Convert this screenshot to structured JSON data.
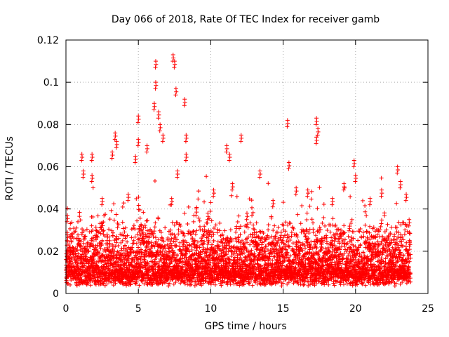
{
  "chart_data": {
    "type": "scatter",
    "title": "Day 066 of 2018, Rate Of TEC Index for receiver gamb",
    "xlabel": "GPS time / hours",
    "ylabel": "ROTI / TECUs",
    "xlim": [
      0,
      25
    ],
    "ylim": [
      0,
      0.12
    ],
    "xticks": [
      0,
      5,
      10,
      15,
      20,
      25
    ],
    "yticks": [
      0,
      0.02,
      0.04,
      0.06,
      0.08,
      0.1,
      0.12
    ],
    "xtick_labels": [
      "0",
      "5",
      "10",
      "15",
      "20",
      "25"
    ],
    "ytick_labels": [
      "0",
      "0.02",
      "0.04",
      "0.06",
      "0.08",
      "0.1",
      "0.12"
    ],
    "grid": true,
    "marker": "+",
    "color": "#ff0000",
    "data_x_range": [
      0,
      23.8
    ],
    "series": [
      {
        "name": "ROTI",
        "points": [
          [
            0.1,
            0.028
          ],
          [
            0.1,
            0.037
          ],
          [
            0.2,
            0.012
          ],
          [
            0.3,
            0.02
          ],
          [
            1.1,
            0.066
          ],
          [
            1.2,
            0.058
          ],
          [
            1.8,
            0.066
          ],
          [
            1.8,
            0.056
          ],
          [
            2.5,
            0.045
          ],
          [
            3.2,
            0.067
          ],
          [
            3.4,
            0.076
          ],
          [
            3.5,
            0.072
          ],
          [
            4.3,
            0.047
          ],
          [
            4.8,
            0.065
          ],
          [
            5.0,
            0.084
          ],
          [
            5.0,
            0.073
          ],
          [
            5.6,
            0.07
          ],
          [
            6.1,
            0.09
          ],
          [
            6.2,
            0.1
          ],
          [
            6.2,
            0.11
          ],
          [
            6.4,
            0.086
          ],
          [
            6.5,
            0.08
          ],
          [
            6.7,
            0.075
          ],
          [
            7.3,
            0.045
          ],
          [
            7.4,
            0.113
          ],
          [
            7.5,
            0.11
          ],
          [
            7.6,
            0.097
          ],
          [
            7.7,
            0.058
          ],
          [
            8.2,
            0.092
          ],
          [
            8.3,
            0.075
          ],
          [
            8.3,
            0.066
          ],
          [
            9.0,
            0.04
          ],
          [
            9.8,
            0.038
          ],
          [
            10.2,
            0.049
          ],
          [
            11.1,
            0.07
          ],
          [
            11.3,
            0.066
          ],
          [
            11.5,
            0.052
          ],
          [
            12.1,
            0.075
          ],
          [
            12.5,
            0.038
          ],
          [
            13.4,
            0.058
          ],
          [
            14.3,
            0.044
          ],
          [
            15.3,
            0.082
          ],
          [
            15.4,
            0.062
          ],
          [
            15.9,
            0.05
          ],
          [
            16.7,
            0.049
          ],
          [
            17.3,
            0.083
          ],
          [
            17.4,
            0.078
          ],
          [
            17.3,
            0.074
          ],
          [
            18.4,
            0.045
          ],
          [
            19.2,
            0.052
          ],
          [
            19.9,
            0.063
          ],
          [
            20.0,
            0.056
          ],
          [
            21.0,
            0.045
          ],
          [
            21.8,
            0.049
          ],
          [
            22.9,
            0.06
          ],
          [
            23.1,
            0.053
          ],
          [
            23.5,
            0.047
          ],
          [
            23.7,
            0.035
          ]
        ]
      }
    ]
  }
}
